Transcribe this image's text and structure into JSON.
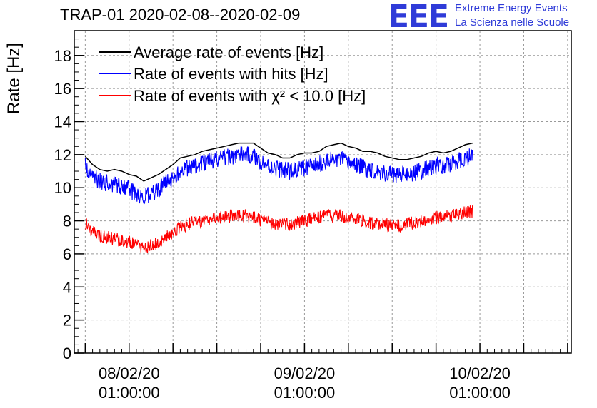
{
  "page": {
    "title": "TRAP-01 2020-02-08--2020-02-09",
    "logo": {
      "mark": "EEE",
      "line1": "Extreme Energy Events",
      "line2": "La Scienza nelle Scuole"
    }
  },
  "colors": {
    "average": "#000000",
    "hits": "#0000ff",
    "chi2": "#ff0000",
    "logo": "#2f3bd8",
    "grid": "#999999"
  },
  "chart_data": {
    "type": "line",
    "title": "TRAP-01 2020-02-08--2020-02-09",
    "ylabel": "Rate [Hz]",
    "xlabel": "",
    "ylim": [
      0,
      19.5
    ],
    "xlim_hours": [
      -6.5,
      61.5
    ],
    "yticks": [
      0,
      2,
      4,
      6,
      8,
      10,
      12,
      14,
      16,
      18
    ],
    "xticks": [
      {
        "hour": 1,
        "line1": "08/02/20",
        "line2": "01:00:00"
      },
      {
        "hour": 25,
        "line1": "09/02/20",
        "line2": "01:00:00"
      },
      {
        "hour": 49,
        "line1": "10/02/20",
        "line2": "01:00:00"
      }
    ],
    "grid": true,
    "legend_position": "top-left",
    "series": [
      {
        "name": "Average rate of events [Hz]",
        "key": "average",
        "x_hours": [
          -5,
          -4,
          -3,
          -2,
          -1,
          0,
          1,
          2,
          3,
          4,
          5,
          6,
          7,
          8,
          9,
          10,
          11,
          12,
          13,
          14,
          15,
          16,
          17,
          18,
          19,
          20,
          21,
          22,
          23,
          24,
          25,
          26,
          27,
          28,
          29,
          30,
          31,
          32,
          33,
          34,
          35,
          36,
          37,
          38,
          39,
          40,
          41,
          42,
          43,
          44,
          45,
          46,
          47,
          48
        ],
        "values": [
          11.9,
          11.4,
          11.1,
          11.0,
          11.1,
          11.0,
          10.8,
          10.7,
          10.4,
          10.6,
          10.8,
          11.1,
          11.4,
          11.8,
          11.9,
          12.0,
          12.2,
          12.3,
          12.4,
          12.5,
          12.6,
          12.7,
          12.7,
          12.7,
          12.4,
          12.1,
          12.0,
          11.8,
          11.8,
          12.0,
          12.1,
          12.1,
          12.2,
          12.5,
          12.6,
          12.7,
          12.5,
          12.4,
          12.2,
          12.2,
          12.1,
          11.9,
          11.8,
          11.7,
          11.7,
          11.8,
          11.9,
          12.1,
          12.2,
          12.1,
          12.2,
          12.4,
          12.6,
          12.7
        ]
      },
      {
        "name": "Rate of events with hits [Hz]",
        "key": "hits",
        "x_hours": [
          -5,
          -4,
          -3,
          -2,
          -1,
          0,
          1,
          2,
          3,
          4,
          5,
          6,
          7,
          8,
          9,
          10,
          11,
          12,
          13,
          14,
          15,
          16,
          17,
          18,
          19,
          20,
          21,
          22,
          23,
          24,
          25,
          26,
          27,
          28,
          29,
          30,
          31,
          32,
          33,
          34,
          35,
          36,
          37,
          38,
          39,
          40,
          41,
          42,
          43,
          44,
          45,
          46,
          47,
          48
        ],
        "values": [
          11.3,
          10.7,
          10.4,
          10.3,
          10.2,
          10.1,
          9.9,
          9.6,
          9.4,
          9.6,
          9.9,
          10.3,
          10.6,
          11.0,
          11.2,
          11.3,
          11.5,
          11.6,
          11.7,
          11.8,
          11.9,
          12.0,
          12.0,
          11.9,
          11.6,
          11.3,
          11.2,
          11.1,
          11.0,
          11.1,
          11.2,
          11.3,
          11.4,
          11.6,
          11.7,
          11.7,
          11.5,
          11.4,
          11.2,
          11.1,
          11.0,
          10.9,
          10.8,
          10.8,
          10.8,
          10.9,
          11.0,
          11.2,
          11.3,
          11.3,
          11.4,
          11.6,
          11.8,
          11.9
        ]
      },
      {
        "name": "Rate of events with χ² < 10.0 [Hz]",
        "key": "chi2",
        "x_hours": [
          -5,
          -4,
          -3,
          -2,
          -1,
          0,
          1,
          2,
          3,
          4,
          5,
          6,
          7,
          8,
          9,
          10,
          11,
          12,
          13,
          14,
          15,
          16,
          17,
          18,
          19,
          20,
          21,
          22,
          23,
          24,
          25,
          26,
          27,
          28,
          29,
          30,
          31,
          32,
          33,
          34,
          35,
          36,
          37,
          38,
          39,
          40,
          41,
          42,
          43,
          44,
          45,
          46,
          47,
          48
        ],
        "values": [
          7.9,
          7.3,
          7.1,
          7.0,
          6.9,
          6.8,
          6.7,
          6.5,
          6.4,
          6.5,
          6.7,
          7.0,
          7.3,
          7.6,
          7.8,
          7.9,
          8.0,
          8.1,
          8.2,
          8.2,
          8.3,
          8.3,
          8.3,
          8.2,
          8.0,
          7.9,
          7.8,
          7.8,
          7.8,
          7.9,
          8.0,
          8.1,
          8.2,
          8.3,
          8.3,
          8.3,
          8.2,
          8.1,
          8.0,
          7.9,
          7.8,
          7.8,
          7.7,
          7.7,
          7.8,
          7.9,
          8.0,
          8.1,
          8.2,
          8.2,
          8.3,
          8.4,
          8.5,
          8.6
        ]
      }
    ]
  }
}
